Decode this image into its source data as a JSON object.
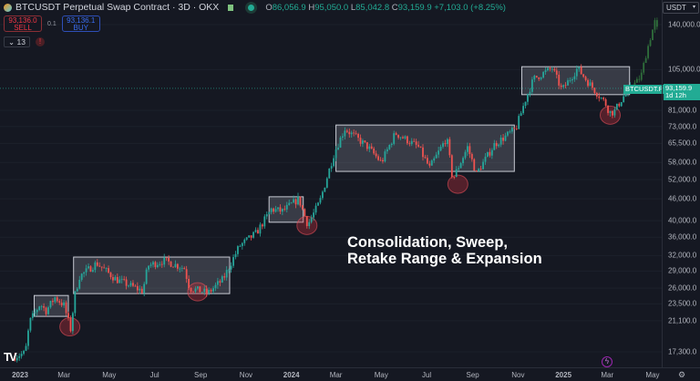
{
  "header": {
    "symbol_title": "BTCUSDT Perpetual Swap Contract · 3D · OKX",
    "ohlc": {
      "o_label": "O",
      "o": "86,056.9",
      "h_label": "H",
      "h": "95,050.0",
      "l_label": "L",
      "l": "85,042.8",
      "c_label": "C",
      "c": "93,159.9",
      "change": "+7,103.0 (+8.25%)"
    }
  },
  "trade": {
    "sell_price": "93,136.0",
    "sell_label": "SELL",
    "spread": "0.1",
    "buy_price": "93,136.1",
    "buy_label": "BUY"
  },
  "indicators": {
    "count": "13",
    "warning": "!"
  },
  "currency": "USDT",
  "current_price": {
    "symbol": "BTCUSDT.P",
    "price": "93,159.9",
    "countdown": "1d 12h"
  },
  "annotation": {
    "line1": "Consolidation, Sweep,",
    "line2": "Retake Range & Expansion"
  },
  "colors": {
    "up": "#26a69a",
    "down": "#ef5350",
    "projection": "#2f6e3b",
    "background": "#151822"
  },
  "chart_data": {
    "type": "candlestick",
    "interval": "3D",
    "y_scale": "log",
    "y_ticks": [
      "140,000.0",
      "105,000.0",
      "81,000.0",
      "73,000.0",
      "65,500.0",
      "58,000.0",
      "52,000.0",
      "46,000.0",
      "40,000.0",
      "36,000.0",
      "32,000.0",
      "29,000.0",
      "26,000.0",
      "23,500.0",
      "21,100.0",
      "17,300.0"
    ],
    "y_tick_values": [
      140000,
      105000,
      81000,
      73000,
      65500,
      58000,
      52000,
      46000,
      40000,
      36000,
      32000,
      29000,
      26000,
      23500,
      21100,
      17300
    ],
    "x_ticks": [
      {
        "label": "2023",
        "date": "2023-01-01",
        "year": true
      },
      {
        "label": "Mar",
        "date": "2023-03-01"
      },
      {
        "label": "May",
        "date": "2023-05-01"
      },
      {
        "label": "Jul",
        "date": "2023-07-01"
      },
      {
        "label": "Sep",
        "date": "2023-09-01"
      },
      {
        "label": "Nov",
        "date": "2023-11-01"
      },
      {
        "label": "2024",
        "date": "2024-01-01",
        "year": true
      },
      {
        "label": "Mar",
        "date": "2024-03-01"
      },
      {
        "label": "May",
        "date": "2024-05-01"
      },
      {
        "label": "Jul",
        "date": "2024-07-01"
      },
      {
        "label": "Sep",
        "date": "2024-09-01"
      },
      {
        "label": "Nov",
        "date": "2024-11-01"
      },
      {
        "label": "2025",
        "date": "2025-01-01",
        "year": true
      },
      {
        "label": "Mar",
        "date": "2025-03-01"
      },
      {
        "label": "May",
        "date": "2025-05-01"
      }
    ],
    "price_path": [
      [
        "2022-12-25",
        16800
      ],
      [
        "2023-01-08",
        17200
      ],
      [
        "2023-01-14",
        21000
      ],
      [
        "2023-01-28",
        23500
      ],
      [
        "2023-02-05",
        22500
      ],
      [
        "2023-02-17",
        24500
      ],
      [
        "2023-03-01",
        23300
      ],
      [
        "2023-03-10",
        20000
      ],
      [
        "2023-03-16",
        25000
      ],
      [
        "2023-03-22",
        28000
      ],
      [
        "2023-04-14",
        30500
      ],
      [
        "2023-05-10",
        27500
      ],
      [
        "2023-06-15",
        25500
      ],
      [
        "2023-06-22",
        30000
      ],
      [
        "2023-07-14",
        31000
      ],
      [
        "2023-08-10",
        29500
      ],
      [
        "2023-08-17",
        26000
      ],
      [
        "2023-09-11",
        25200
      ],
      [
        "2023-10-01",
        27500
      ],
      [
        "2023-10-23",
        34000
      ],
      [
        "2023-11-15",
        37000
      ],
      [
        "2023-12-05",
        43000
      ],
      [
        "2023-12-20",
        42500
      ],
      [
        "2024-01-11",
        46000
      ],
      [
        "2024-01-23",
        39000
      ],
      [
        "2024-02-08",
        45000
      ],
      [
        "2024-02-28",
        62000
      ],
      [
        "2024-03-13",
        72000
      ],
      [
        "2024-04-13",
        64000
      ],
      [
        "2024-05-01",
        58000
      ],
      [
        "2024-05-20",
        70000
      ],
      [
        "2024-06-20",
        64000
      ],
      [
        "2024-07-05",
        56000
      ],
      [
        "2024-07-28",
        68000
      ],
      [
        "2024-08-05",
        52000
      ],
      [
        "2024-08-25",
        64000
      ],
      [
        "2024-09-06",
        54000
      ],
      [
        "2024-09-30",
        65000
      ],
      [
        "2024-10-29",
        72000
      ],
      [
        "2024-11-12",
        88000
      ],
      [
        "2024-11-22",
        99000
      ],
      [
        "2024-12-17",
        106000
      ],
      [
        "2024-12-30",
        92000
      ],
      [
        "2025-01-20",
        106000
      ],
      [
        "2025-02-03",
        97000
      ],
      [
        "2025-02-26",
        85000
      ],
      [
        "2025-03-04",
        80000
      ],
      [
        "2025-03-10",
        80000
      ],
      [
        "2025-03-22",
        88000
      ],
      [
        "2025-04-01",
        93159.9
      ]
    ],
    "projection_path": [
      [
        "2025-04-01",
        93159.9
      ],
      [
        "2025-04-15",
        100000
      ],
      [
        "2025-04-24",
        120000
      ],
      [
        "2025-05-05",
        145000
      ],
      [
        "2025-05-08",
        132000
      ]
    ],
    "ranges": [
      {
        "start": "2023-01-20",
        "end": "2023-03-07",
        "top": 24800,
        "bottom": 21700
      },
      {
        "start": "2023-03-14",
        "end": "2023-10-10",
        "top": 31700,
        "bottom": 25100
      },
      {
        "start": "2023-12-02",
        "end": "2024-01-17",
        "top": 46600,
        "bottom": 39600
      },
      {
        "start": "2024-03-01",
        "end": "2024-10-27",
        "top": 73700,
        "bottom": 54800
      },
      {
        "start": "2024-11-06",
        "end": "2025-03-31",
        "top": 107000,
        "bottom": 89500
      }
    ],
    "sweeps": [
      {
        "date": "2023-03-09",
        "price": 20300
      },
      {
        "date": "2023-08-28",
        "price": 25400
      },
      {
        "date": "2024-01-22",
        "price": 38800
      },
      {
        "date": "2024-08-12",
        "price": 50500
      },
      {
        "date": "2025-03-05",
        "price": 78500
      }
    ]
  }
}
